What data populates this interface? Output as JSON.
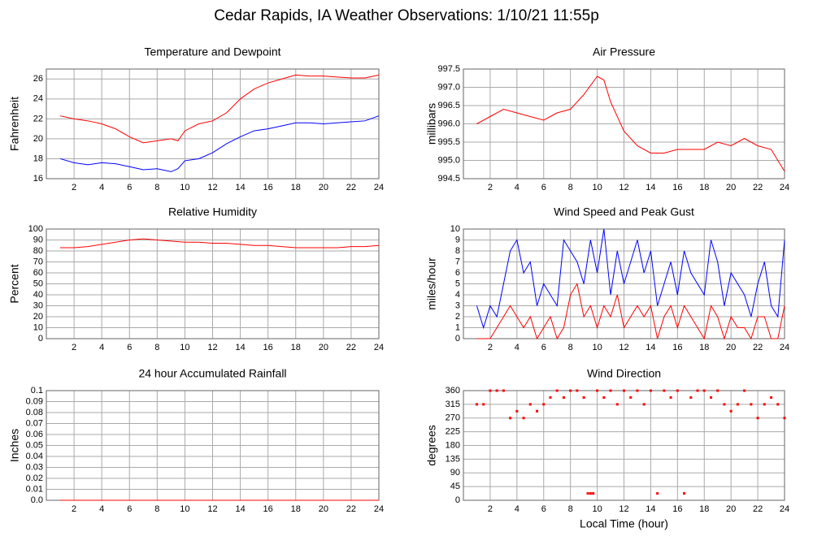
{
  "title": "Cedar Rapids, IA Weather Observations: 1/10/21 11:55p",
  "chart_data": [
    {
      "type": "line",
      "title": "Temperature and Dewpoint",
      "ylabel": "Fahrenheit",
      "x": [
        1,
        2,
        3,
        4,
        5,
        6,
        7,
        8,
        9,
        9.5,
        10,
        11,
        12,
        13,
        14,
        15,
        16,
        17,
        18,
        19,
        20,
        21,
        22,
        23,
        24
      ],
      "series": [
        {
          "color": "#ff0000",
          "values": [
            22.3,
            22,
            21.8,
            21.5,
            21,
            20.2,
            19.6,
            19.8,
            20,
            19.8,
            20.8,
            21.5,
            21.8,
            22.6,
            24,
            25,
            25.6,
            26,
            26.4,
            26.3,
            26.3,
            26.2,
            26.1,
            26.1,
            26.4
          ]
        },
        {
          "color": "#0000ff",
          "values": [
            18,
            17.6,
            17.4,
            17.6,
            17.5,
            17.2,
            16.9,
            17,
            16.7,
            17,
            17.8,
            18,
            18.6,
            19.5,
            20.2,
            20.8,
            21,
            21.3,
            21.6,
            21.6,
            21.5,
            21.6,
            21.7,
            21.8,
            22.3
          ]
        }
      ],
      "xlim": [
        0,
        24
      ],
      "xticks": [
        2,
        4,
        6,
        8,
        10,
        12,
        14,
        16,
        18,
        20,
        22,
        24
      ],
      "ylim": [
        16,
        27
      ],
      "yticks": [
        16,
        18,
        20,
        22,
        24,
        26
      ],
      "grid": true
    },
    {
      "type": "line",
      "title": "Air Pressure",
      "ylabel": "millibars",
      "x": [
        1,
        2,
        3,
        4,
        5,
        6,
        7,
        8,
        9,
        10,
        10.5,
        11,
        12,
        13,
        14,
        15,
        16,
        17,
        18,
        19,
        20,
        21,
        22,
        23,
        24
      ],
      "series": [
        {
          "color": "#ff0000",
          "values": [
            996.0,
            996.2,
            996.4,
            996.3,
            996.2,
            996.1,
            996.3,
            996.4,
            996.8,
            997.3,
            997.2,
            996.6,
            995.8,
            995.4,
            995.2,
            995.2,
            995.3,
            995.3,
            995.3,
            995.5,
            995.4,
            995.6,
            995.4,
            995.3,
            994.7
          ]
        }
      ],
      "xlim": [
        0,
        24
      ],
      "xticks": [
        2,
        4,
        6,
        8,
        10,
        12,
        14,
        16,
        18,
        20,
        22,
        24
      ],
      "ylim": [
        994.5,
        997.5
      ],
      "yticks": [
        994.5,
        {
          "value": 995,
          "label": "995.0"
        },
        995.5,
        {
          "value": 996,
          "label": "996.0"
        },
        996.5,
        {
          "value": 997,
          "label": "997.0"
        },
        997.5
      ],
      "grid": true
    },
    {
      "type": "line",
      "title": "Relative Humidity",
      "ylabel": "Percent",
      "x": [
        1,
        2,
        3,
        4,
        5,
        6,
        7,
        8,
        9,
        10,
        11,
        12,
        13,
        14,
        15,
        16,
        17,
        18,
        19,
        20,
        21,
        22,
        23,
        24
      ],
      "series": [
        {
          "color": "#ff0000",
          "values": [
            83,
            83,
            84,
            86,
            88,
            90,
            91,
            90,
            89,
            88,
            88,
            87,
            87,
            86,
            85,
            85,
            84,
            83,
            83,
            83,
            83,
            84,
            84,
            85
          ]
        }
      ],
      "xlim": [
        0,
        24
      ],
      "xticks": [
        2,
        4,
        6,
        8,
        10,
        12,
        14,
        16,
        18,
        20,
        22,
        24
      ],
      "ylim": [
        0,
        100
      ],
      "yticks": [
        0,
        10,
        20,
        30,
        40,
        50,
        60,
        70,
        80,
        90,
        100
      ],
      "grid": true
    },
    {
      "type": "line",
      "title": "Wind Speed and Peak Gust",
      "ylabel": "miles/hour",
      "x": [
        1,
        1.5,
        2,
        2.5,
        3,
        3.5,
        4,
        4.5,
        5,
        5.5,
        6,
        6.5,
        7,
        7.5,
        8,
        8.5,
        9,
        9.5,
        10,
        10.5,
        11,
        11.5,
        12,
        12.5,
        13,
        13.5,
        14,
        14.5,
        15,
        15.5,
        16,
        16.5,
        17,
        17.5,
        18,
        18.5,
        19,
        19.5,
        20,
        20.5,
        21,
        21.5,
        22,
        22.5,
        23,
        23.5,
        24
      ],
      "series": [
        {
          "color": "#0000ff",
          "values": [
            3,
            1,
            3,
            2,
            5,
            8,
            9,
            6,
            7,
            3,
            5,
            4,
            3,
            9,
            8,
            7,
            5,
            9,
            6,
            10,
            4,
            8,
            5,
            7,
            9,
            6,
            8,
            3,
            5,
            7,
            4,
            8,
            6,
            5,
            4,
            9,
            7,
            3,
            6,
            5,
            4,
            2,
            5,
            7,
            3,
            2,
            9
          ]
        },
        {
          "color": "#ff0000",
          "values": [
            0,
            0,
            0,
            1,
            2,
            3,
            2,
            1,
            2,
            0,
            1,
            2,
            0,
            1,
            4,
            5,
            2,
            3,
            1,
            3,
            2,
            4,
            1,
            2,
            3,
            2,
            3,
            0,
            2,
            3,
            1,
            3,
            2,
            1,
            0,
            3,
            2,
            0,
            2,
            1,
            1,
            0,
            2,
            2,
            0,
            0,
            3
          ]
        }
      ],
      "xlim": [
        0,
        24
      ],
      "xticks": [
        2,
        4,
        6,
        8,
        10,
        12,
        14,
        16,
        18,
        20,
        22,
        24
      ],
      "ylim": [
        0,
        10
      ],
      "yticks": [
        0,
        1,
        2,
        3,
        4,
        5,
        6,
        7,
        8,
        9,
        10
      ],
      "grid": true
    },
    {
      "type": "line",
      "title": "24 hour Accumulated Rainfall",
      "ylabel": "Inches",
      "x": [
        1,
        24
      ],
      "series": [
        {
          "color": "#ff0000",
          "values": [
            0,
            0
          ]
        }
      ],
      "xlim": [
        0,
        24
      ],
      "xticks": [
        2,
        4,
        6,
        8,
        10,
        12,
        14,
        16,
        18,
        20,
        22,
        24
      ],
      "ylim": [
        0,
        0.1
      ],
      "yticks": [
        {
          "value": 0,
          "label": "0.0"
        },
        0.01,
        0.02,
        0.03,
        0.04,
        0.05,
        0.06,
        0.07,
        0.08,
        0.09,
        0.1
      ],
      "grid": true
    },
    {
      "type": "scatter",
      "title": "Wind Direction",
      "ylabel": "degrees",
      "xlabel": "Local Time (hour)",
      "x": [
        1,
        1.5,
        2,
        2.5,
        3,
        3.5,
        4,
        4.5,
        5,
        5.5,
        6,
        6.5,
        7,
        7.5,
        8,
        8.5,
        9,
        9.3,
        9.5,
        9.7,
        10,
        10.5,
        11,
        11.5,
        12,
        12.5,
        13,
        13.5,
        14,
        14.5,
        15,
        15.5,
        16,
        16.5,
        17,
        17.5,
        18,
        18.5,
        19,
        19.5,
        20,
        20.5,
        21,
        21.5,
        22,
        22.5,
        23,
        23.5,
        24
      ],
      "color": "#ff0000",
      "values": [
        315,
        315,
        360,
        360,
        360,
        270,
        292.5,
        270,
        315,
        292.5,
        315,
        337.5,
        360,
        337.5,
        360,
        360,
        337.5,
        22.5,
        22.5,
        22.5,
        360,
        337.5,
        360,
        315,
        360,
        337.5,
        360,
        315,
        360,
        22.5,
        360,
        337.5,
        360,
        22.5,
        337.5,
        360,
        360,
        337.5,
        360,
        315,
        292.5,
        315,
        360,
        315,
        270,
        315,
        337.5,
        315,
        270
      ],
      "xlim": [
        0,
        24
      ],
      "xticks": [
        2,
        4,
        6,
        8,
        10,
        12,
        14,
        16,
        18,
        20,
        22,
        24
      ],
      "ylim": [
        0,
        360
      ],
      "yticks": [
        0,
        45,
        90,
        135,
        180,
        225,
        270,
        315,
        360
      ],
      "grid": true
    }
  ]
}
